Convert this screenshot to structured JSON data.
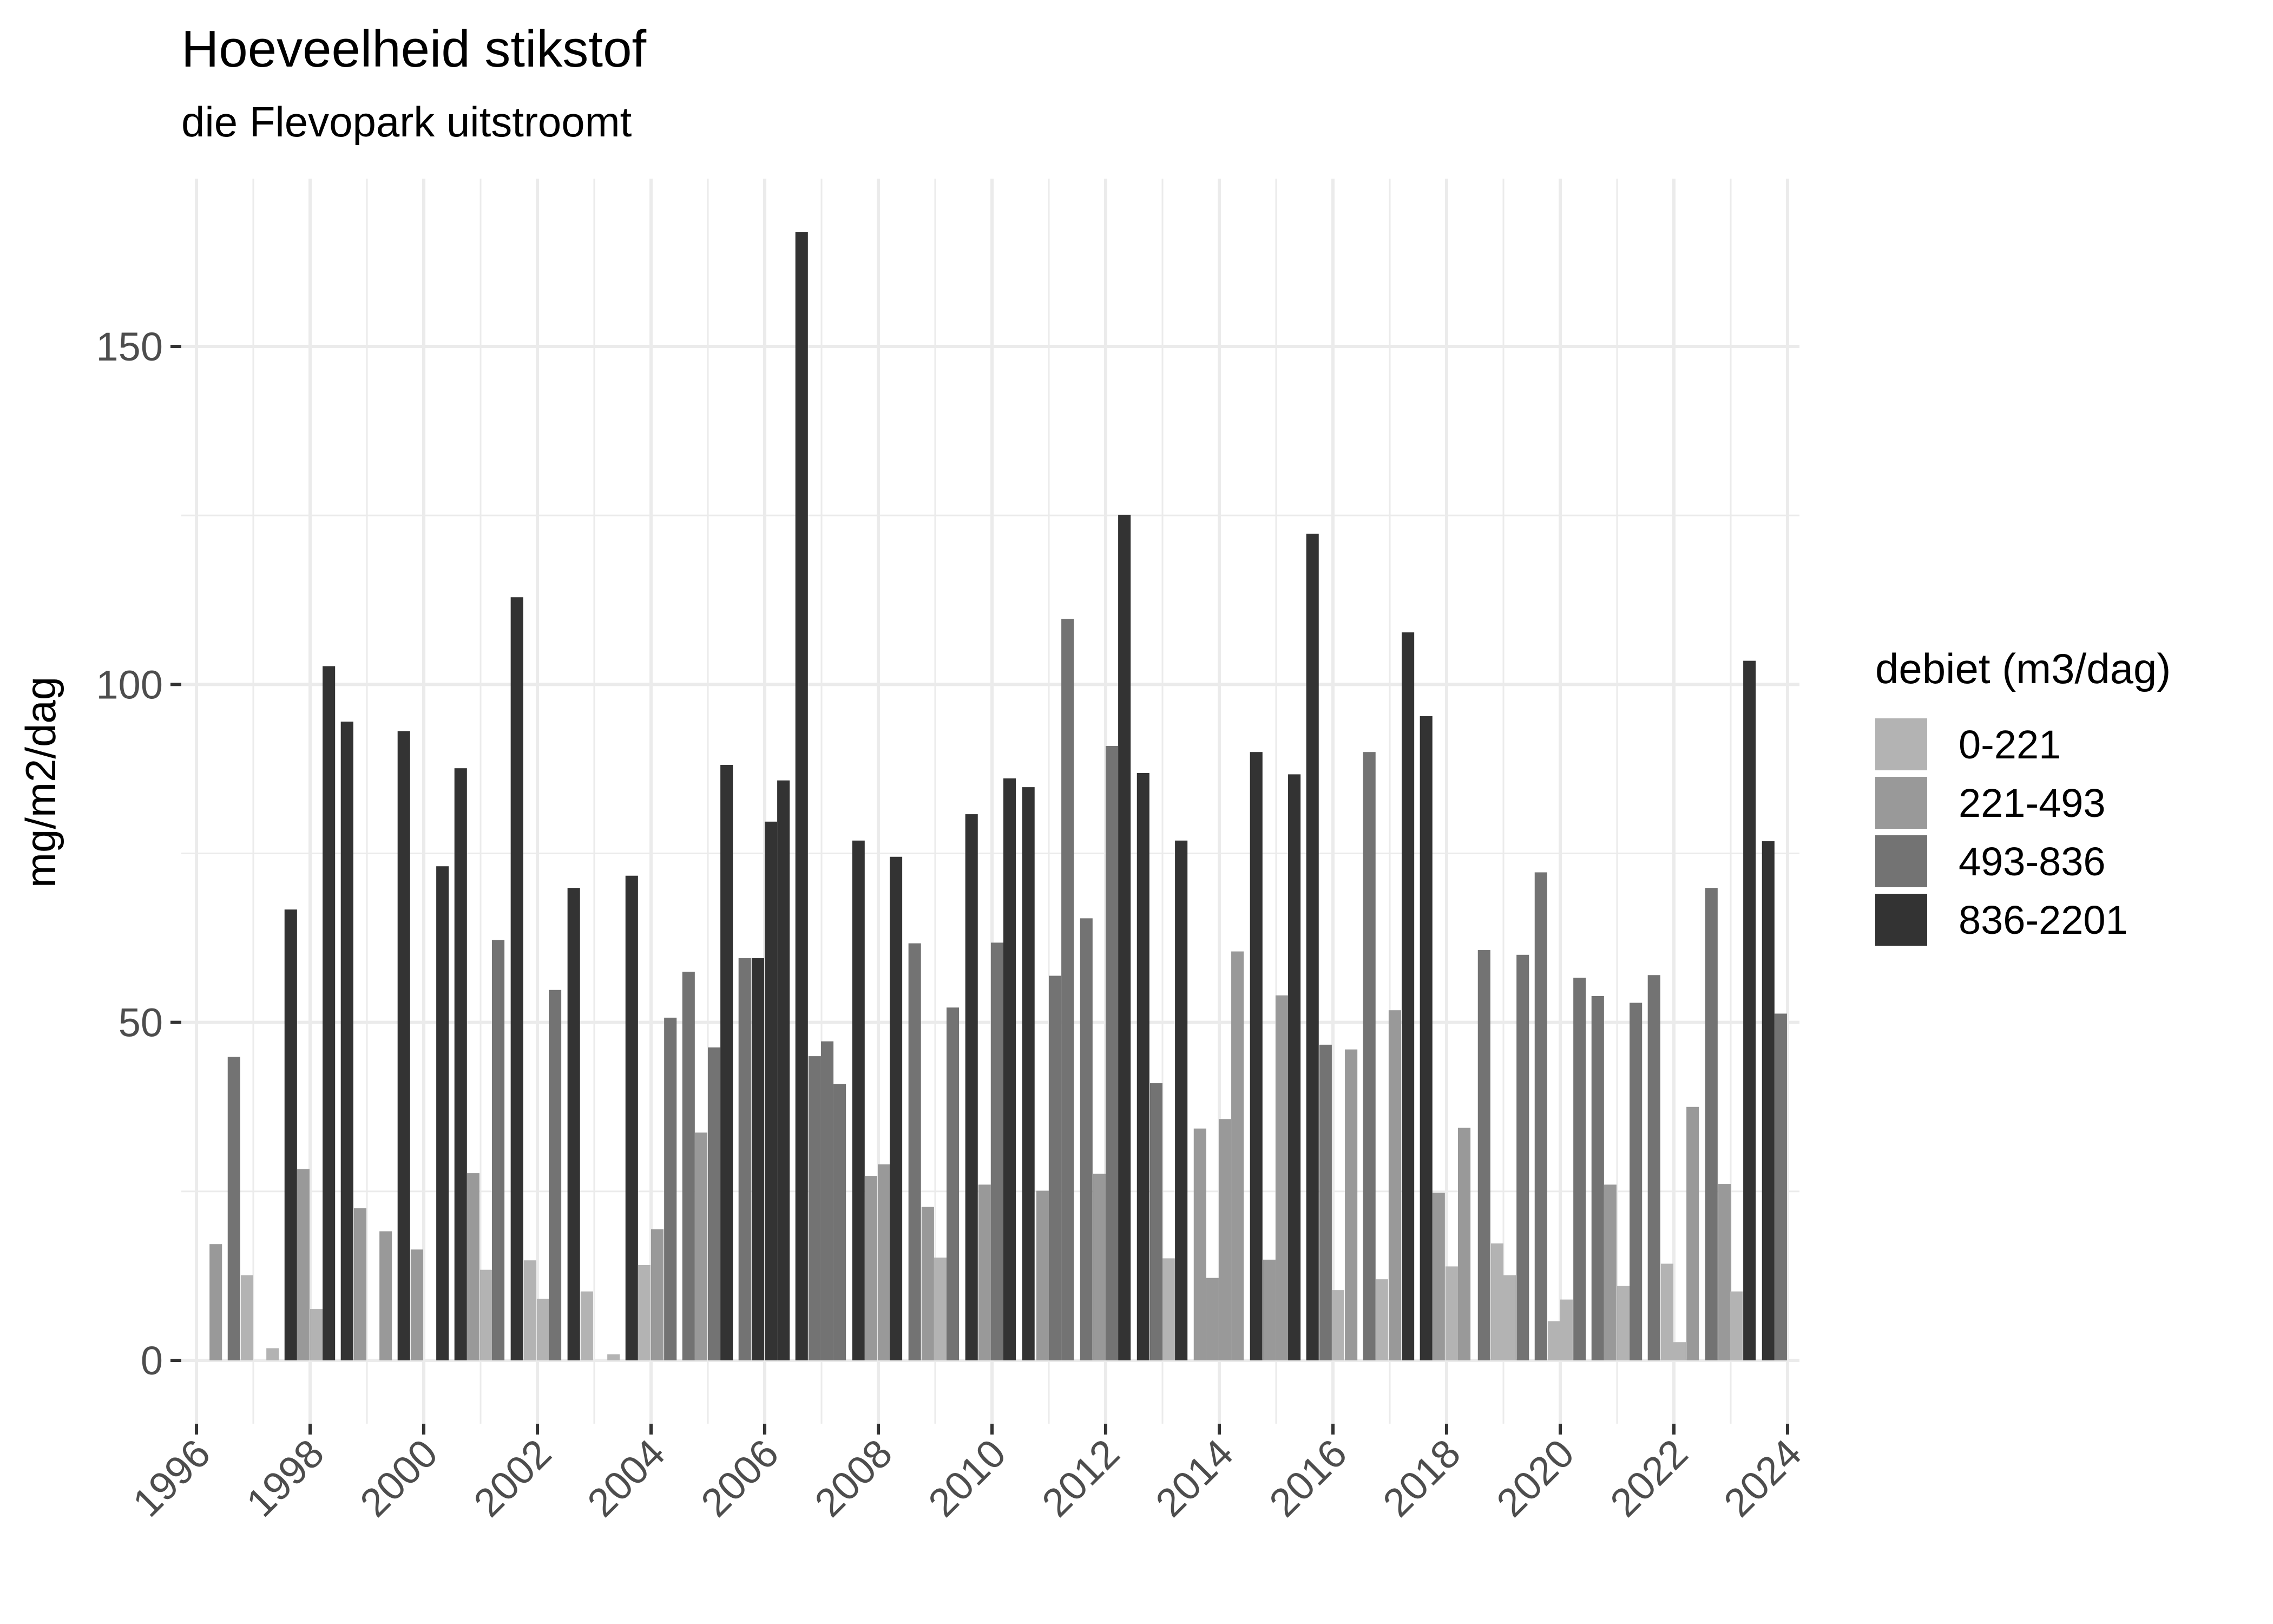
{
  "title": "Hoeveelheid stikstof",
  "subtitle": "die Flevopark uitstroomt",
  "legend": {
    "title": "debiet (m3/dag)",
    "items": [
      {
        "label": "0-221",
        "color": "#B3B3B3"
      },
      {
        "label": "221-493",
        "color": "#999999"
      },
      {
        "label": "493-836",
        "color": "#737373"
      },
      {
        "label": "836-2201",
        "color": "#333333"
      }
    ]
  },
  "chart_data": {
    "type": "bar",
    "title": "Hoeveelheid stikstof",
    "subtitle": "die Flevopark uitstroomt",
    "xlabel": "",
    "ylabel": "mg/m2/dag",
    "xlim": [
      1995.9,
      2024.3
    ],
    "ylim": [
      -7,
      175
    ],
    "xticks": [
      1996,
      1998,
      2000,
      2002,
      2004,
      2006,
      2008,
      2010,
      2012,
      2014,
      2016,
      2018,
      2020,
      2022,
      2024
    ],
    "yticks": [
      0,
      50,
      100,
      150
    ],
    "grid": true,
    "legend_position": "right",
    "fill_variable": "debiet (m3/dag)",
    "classes": [
      "0-221",
      "221-493",
      "493-836",
      "836-2201"
    ],
    "bar_width_years": 0.22,
    "bars": [
      {
        "x": 1996.23,
        "value": 17.2,
        "class": "221-493"
      },
      {
        "x": 1996.55,
        "value": 44.9,
        "class": "493-836"
      },
      {
        "x": 1996.78,
        "value": 12.6,
        "class": "0-221"
      },
      {
        "x": 1997.23,
        "value": 1.8,
        "class": "0-221"
      },
      {
        "x": 1997.55,
        "value": 66.7,
        "class": "836-2201"
      },
      {
        "x": 1997.77,
        "value": 28.3,
        "class": "221-493"
      },
      {
        "x": 1998.0,
        "value": 7.6,
        "class": "0-221"
      },
      {
        "x": 1998.22,
        "value": 102.7,
        "class": "836-2201"
      },
      {
        "x": 1998.54,
        "value": 94.5,
        "class": "836-2201"
      },
      {
        "x": 1998.77,
        "value": 22.5,
        "class": "221-493"
      },
      {
        "x": 1999.22,
        "value": 19.1,
        "class": "221-493"
      },
      {
        "x": 1999.54,
        "value": 93.1,
        "class": "836-2201"
      },
      {
        "x": 1999.77,
        "value": 16.4,
        "class": "221-493"
      },
      {
        "x": 2000.22,
        "value": 73.1,
        "class": "836-2201"
      },
      {
        "x": 2000.54,
        "value": 87.6,
        "class": "836-2201"
      },
      {
        "x": 2000.76,
        "value": 27.7,
        "class": "221-493"
      },
      {
        "x": 2000.99,
        "value": 13.4,
        "class": "0-221"
      },
      {
        "x": 2001.2,
        "value": 62.2,
        "class": "493-836"
      },
      {
        "x": 2001.53,
        "value": 112.9,
        "class": "836-2201"
      },
      {
        "x": 2001.76,
        "value": 14.8,
        "class": "0-221"
      },
      {
        "x": 2001.99,
        "value": 9.1,
        "class": "0-221"
      },
      {
        "x": 2002.2,
        "value": 54.8,
        "class": "493-836"
      },
      {
        "x": 2002.53,
        "value": 69.9,
        "class": "836-2201"
      },
      {
        "x": 2002.76,
        "value": 10.2,
        "class": "0-221"
      },
      {
        "x": 2003.23,
        "value": 0.9,
        "class": "0-221"
      },
      {
        "x": 2003.55,
        "value": 71.7,
        "class": "836-2201"
      },
      {
        "x": 2003.77,
        "value": 14.1,
        "class": "0-221"
      },
      {
        "x": 2004.0,
        "value": 19.4,
        "class": "221-493"
      },
      {
        "x": 2004.23,
        "value": 50.7,
        "class": "493-836"
      },
      {
        "x": 2004.55,
        "value": 57.5,
        "class": "493-836"
      },
      {
        "x": 2004.77,
        "value": 33.7,
        "class": "221-493"
      },
      {
        "x": 2005.0,
        "value": 46.3,
        "class": "493-836"
      },
      {
        "x": 2005.22,
        "value": 88.1,
        "class": "836-2201"
      },
      {
        "x": 2005.54,
        "value": 59.5,
        "class": "493-836"
      },
      {
        "x": 2005.77,
        "value": 59.5,
        "class": "836-2201"
      },
      {
        "x": 2006.0,
        "value": 79.7,
        "class": "836-2201"
      },
      {
        "x": 2006.22,
        "value": 85.8,
        "class": "836-2201"
      },
      {
        "x": 2006.54,
        "value": 166.9,
        "class": "836-2201"
      },
      {
        "x": 2006.77,
        "value": 45.0,
        "class": "493-836"
      },
      {
        "x": 2006.99,
        "value": 47.2,
        "class": "493-836"
      },
      {
        "x": 2007.21,
        "value": 40.9,
        "class": "493-836"
      },
      {
        "x": 2007.54,
        "value": 76.9,
        "class": "836-2201"
      },
      {
        "x": 2007.76,
        "value": 27.3,
        "class": "221-493"
      },
      {
        "x": 2007.99,
        "value": 29.0,
        "class": "221-493"
      },
      {
        "x": 2008.2,
        "value": 74.5,
        "class": "836-2201"
      },
      {
        "x": 2008.53,
        "value": 61.7,
        "class": "493-836"
      },
      {
        "x": 2008.76,
        "value": 22.7,
        "class": "221-493"
      },
      {
        "x": 2008.98,
        "value": 15.2,
        "class": "0-221"
      },
      {
        "x": 2009.2,
        "value": 52.2,
        "class": "493-836"
      },
      {
        "x": 2009.53,
        "value": 80.8,
        "class": "836-2201"
      },
      {
        "x": 2009.76,
        "value": 26.0,
        "class": "221-493"
      },
      {
        "x": 2009.98,
        "value": 61.8,
        "class": "493-836"
      },
      {
        "x": 2010.2,
        "value": 86.1,
        "class": "836-2201"
      },
      {
        "x": 2010.53,
        "value": 84.8,
        "class": "836-2201"
      },
      {
        "x": 2010.78,
        "value": 25.1,
        "class": "221-493"
      },
      {
        "x": 2011.0,
        "value": 56.9,
        "class": "493-836"
      },
      {
        "x": 2011.22,
        "value": 109.7,
        "class": "493-836"
      },
      {
        "x": 2011.55,
        "value": 65.4,
        "class": "493-836"
      },
      {
        "x": 2011.78,
        "value": 27.6,
        "class": "221-493"
      },
      {
        "x": 2012.0,
        "value": 90.9,
        "class": "493-836"
      },
      {
        "x": 2012.22,
        "value": 125.1,
        "class": "836-2201"
      },
      {
        "x": 2012.55,
        "value": 86.9,
        "class": "836-2201"
      },
      {
        "x": 2012.78,
        "value": 41.0,
        "class": "493-836"
      },
      {
        "x": 2013.0,
        "value": 15.1,
        "class": "0-221"
      },
      {
        "x": 2013.22,
        "value": 76.9,
        "class": "836-2201"
      },
      {
        "x": 2013.55,
        "value": 34.3,
        "class": "221-493"
      },
      {
        "x": 2013.77,
        "value": 12.2,
        "class": "221-493"
      },
      {
        "x": 2013.99,
        "value": 35.7,
        "class": "221-493"
      },
      {
        "x": 2014.21,
        "value": 60.5,
        "class": "221-493"
      },
      {
        "x": 2014.54,
        "value": 90.0,
        "class": "836-2201"
      },
      {
        "x": 2014.77,
        "value": 14.9,
        "class": "221-493"
      },
      {
        "x": 2014.99,
        "value": 54.0,
        "class": "221-493"
      },
      {
        "x": 2015.21,
        "value": 86.7,
        "class": "836-2201"
      },
      {
        "x": 2015.53,
        "value": 122.3,
        "class": "836-2201"
      },
      {
        "x": 2015.76,
        "value": 46.7,
        "class": "493-836"
      },
      {
        "x": 2015.98,
        "value": 10.4,
        "class": "0-221"
      },
      {
        "x": 2016.21,
        "value": 46.0,
        "class": "221-493"
      },
      {
        "x": 2016.53,
        "value": 90.0,
        "class": "493-836"
      },
      {
        "x": 2016.75,
        "value": 12.0,
        "class": "0-221"
      },
      {
        "x": 2016.98,
        "value": 51.8,
        "class": "221-493"
      },
      {
        "x": 2017.21,
        "value": 107.7,
        "class": "836-2201"
      },
      {
        "x": 2017.53,
        "value": 95.3,
        "class": "836-2201"
      },
      {
        "x": 2017.75,
        "value": 24.8,
        "class": "221-493"
      },
      {
        "x": 2017.98,
        "value": 13.9,
        "class": "0-221"
      },
      {
        "x": 2018.2,
        "value": 34.4,
        "class": "221-493"
      },
      {
        "x": 2018.55,
        "value": 60.7,
        "class": "493-836"
      },
      {
        "x": 2018.78,
        "value": 17.3,
        "class": "0-221"
      },
      {
        "x": 2019.0,
        "value": 12.6,
        "class": "0-221"
      },
      {
        "x": 2019.23,
        "value": 60.0,
        "class": "493-836"
      },
      {
        "x": 2019.55,
        "value": 72.2,
        "class": "493-836"
      },
      {
        "x": 2019.78,
        "value": 5.8,
        "class": "0-221"
      },
      {
        "x": 2020.0,
        "value": 9.0,
        "class": "0-221"
      },
      {
        "x": 2020.23,
        "value": 56.6,
        "class": "493-836"
      },
      {
        "x": 2020.55,
        "value": 53.9,
        "class": "493-836"
      },
      {
        "x": 2020.77,
        "value": 26.0,
        "class": "221-493"
      },
      {
        "x": 2021.0,
        "value": 11.0,
        "class": "0-221"
      },
      {
        "x": 2021.22,
        "value": 52.9,
        "class": "493-836"
      },
      {
        "x": 2021.54,
        "value": 57.0,
        "class": "493-836"
      },
      {
        "x": 2021.77,
        "value": 14.3,
        "class": "0-221"
      },
      {
        "x": 2021.99,
        "value": 2.7,
        "class": "0-221"
      },
      {
        "x": 2022.22,
        "value": 37.5,
        "class": "221-493"
      },
      {
        "x": 2022.55,
        "value": 69.9,
        "class": "493-836"
      },
      {
        "x": 2022.78,
        "value": 26.1,
        "class": "221-493"
      },
      {
        "x": 2022.99,
        "value": 10.2,
        "class": "0-221"
      },
      {
        "x": 2023.22,
        "value": 103.5,
        "class": "836-2201"
      },
      {
        "x": 2023.55,
        "value": 76.8,
        "class": "836-2201"
      },
      {
        "x": 2023.77,
        "value": 51.3,
        "class": "493-836"
      }
    ]
  }
}
